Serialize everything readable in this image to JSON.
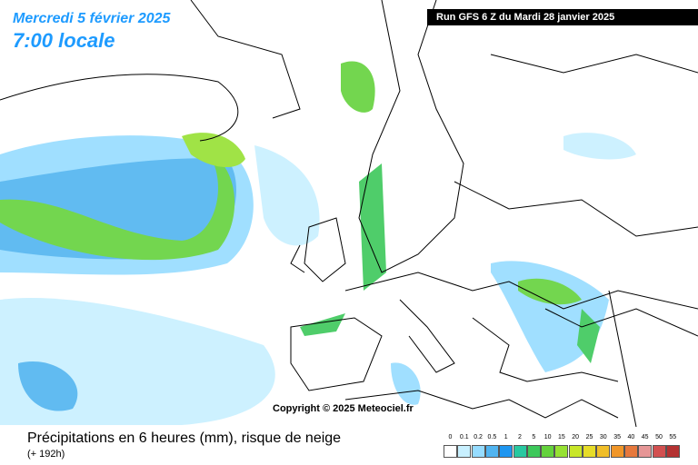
{
  "header": {
    "date": "Mercredi 5 février 2025",
    "time": "7:00 locale",
    "run": "Run GFS 6 Z du Mardi 28 janvier 2025"
  },
  "map": {
    "copyright": "Copyright © 2025 Meteociel.fr"
  },
  "footer": {
    "title": "Précipitations en 6 heures (mm), risque de neige",
    "subtitle": "(+ 192h)"
  },
  "legend": {
    "items": [
      {
        "label": "0",
        "color": "#ffffff"
      },
      {
        "label": "0.1",
        "color": "#c8f0ff"
      },
      {
        "label": "0.2",
        "color": "#96dcff"
      },
      {
        "label": "0.5",
        "color": "#50b4f0"
      },
      {
        "label": "1",
        "color": "#1e96f0"
      },
      {
        "label": "2",
        "color": "#28c8a0"
      },
      {
        "label": "5",
        "color": "#3cc85a"
      },
      {
        "label": "10",
        "color": "#64d23c"
      },
      {
        "label": "15",
        "color": "#96e132"
      },
      {
        "label": "20",
        "color": "#c8e628"
      },
      {
        "label": "25",
        "color": "#e6dc28"
      },
      {
        "label": "30",
        "color": "#f0be28"
      },
      {
        "label": "35",
        "color": "#f09628"
      },
      {
        "label": "40",
        "color": "#e6783c"
      },
      {
        "label": "45",
        "color": "#e69696"
      },
      {
        "label": "50",
        "color": "#d25050"
      },
      {
        "label": "55",
        "color": "#b43232"
      }
    ]
  }
}
